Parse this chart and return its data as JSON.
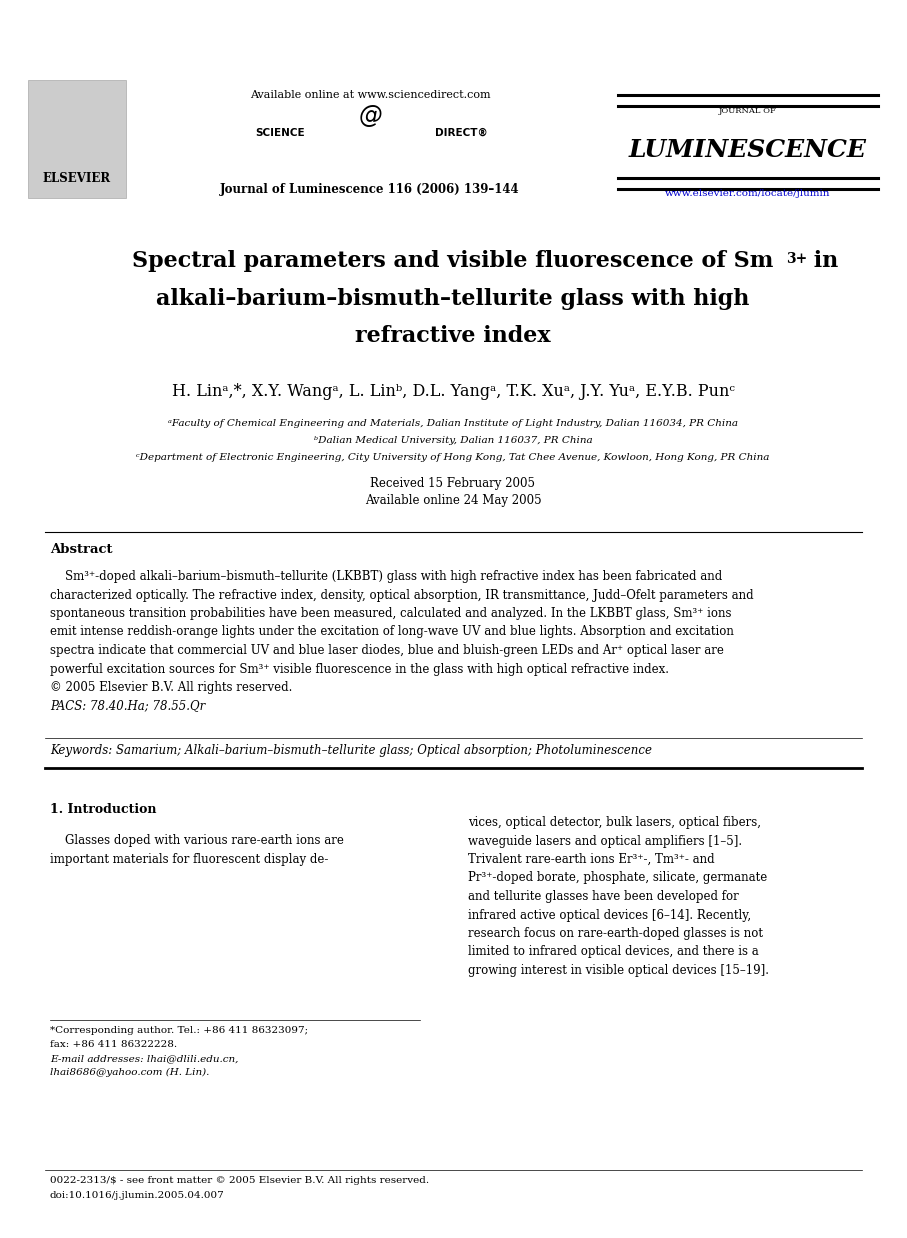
{
  "bg_color": "#ffffff",
  "header": {
    "available_online": "Available online at www.sciencedirect.com",
    "journal_line": "Journal of Luminescence 116 (2006) 139–144",
    "url": "www.elsevier.com/locate/jlumin",
    "elsevier_text": "ELSEVIER",
    "journal_name_small": "JOURNAL OF",
    "journal_name_large": "LUMINESCENCE"
  },
  "title_line1": "Spectral parameters and visible fluorescence of Sm",
  "title_sup": "3+",
  "title_line1b": " in",
  "title_line2": "alkali–barium–bismuth–tellurite glass with high",
  "title_line3": "refractive index",
  "authors": "H. Linᵃ,*, X.Y. Wangᵃ, L. Linᵇ, D.L. Yangᵃ, T.K. Xuᵃ, J.Y. Yuᵃ, E.Y.B. Punᶜ",
  "affil_a": "ᵃFaculty of Chemical Engineering and Materials, Dalian Institute of Light Industry, Dalian 116034, PR China",
  "affil_b": "ᵇDalian Medical University, Dalian 116037, PR China",
  "affil_c": "ᶜDepartment of Electronic Engineering, City University of Hong Kong, Tat Chee Avenue, Kowloon, Hong Kong, PR China",
  "received": "Received 15 February 2005",
  "available": "Available online 24 May 2005",
  "abstract_title": "Abstract",
  "pacs": "PACS: 78.40.Ha; 78.55.Qr",
  "keywords": "Keywords: Samarium; Alkali–barium–bismuth–tellurite glass; Optical absorption; Photoluminescence",
  "section1_title": "1. Introduction",
  "footnote_star": "*Corresponding author. Tel.: +86 411 86323097;",
  "footnote_fax": "fax: +86 411 86322228.",
  "footnote_email1": "E-mail addresses: lhai@dlili.edu.cn,",
  "footnote_email2": "lhai8686@yahoo.com (H. Lin).",
  "footer_left": "0022-2313/$ - see front matter © 2005 Elsevier B.V. All rights reserved.",
  "footer_doi": "doi:10.1016/j.jlumin.2005.04.007"
}
